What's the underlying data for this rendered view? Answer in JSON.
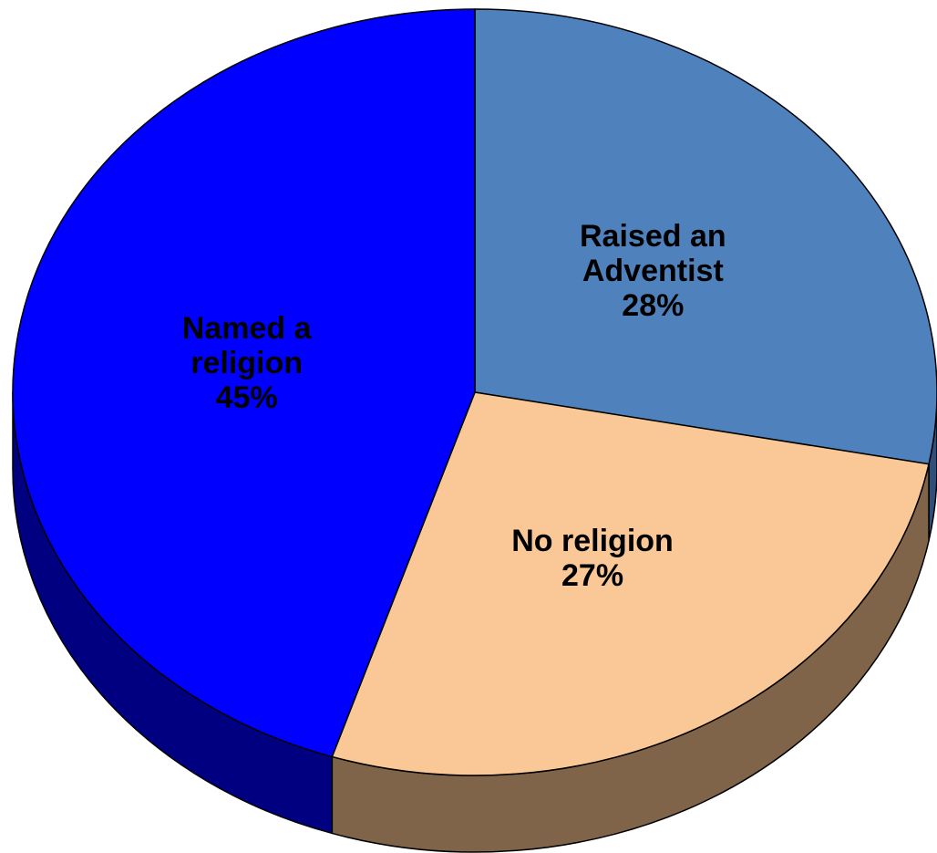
{
  "chart_data": {
    "type": "pie",
    "style": "3d",
    "slices": [
      {
        "label_lines": [
          "Raised an",
          "Adventist"
        ],
        "value": 28,
        "value_label": "28%",
        "color": "#4f81bd",
        "side_color": "#2f4f7a"
      },
      {
        "label_lines": [
          "No religion"
        ],
        "value": 27,
        "value_label": "27%",
        "color": "#fac896",
        "side_color": "#7f6449"
      },
      {
        "label_lines": [
          "Named a",
          "religion"
        ],
        "value": 45,
        "value_label": "45%",
        "color": "#0000ff",
        "side_color": "#000080"
      }
    ]
  }
}
